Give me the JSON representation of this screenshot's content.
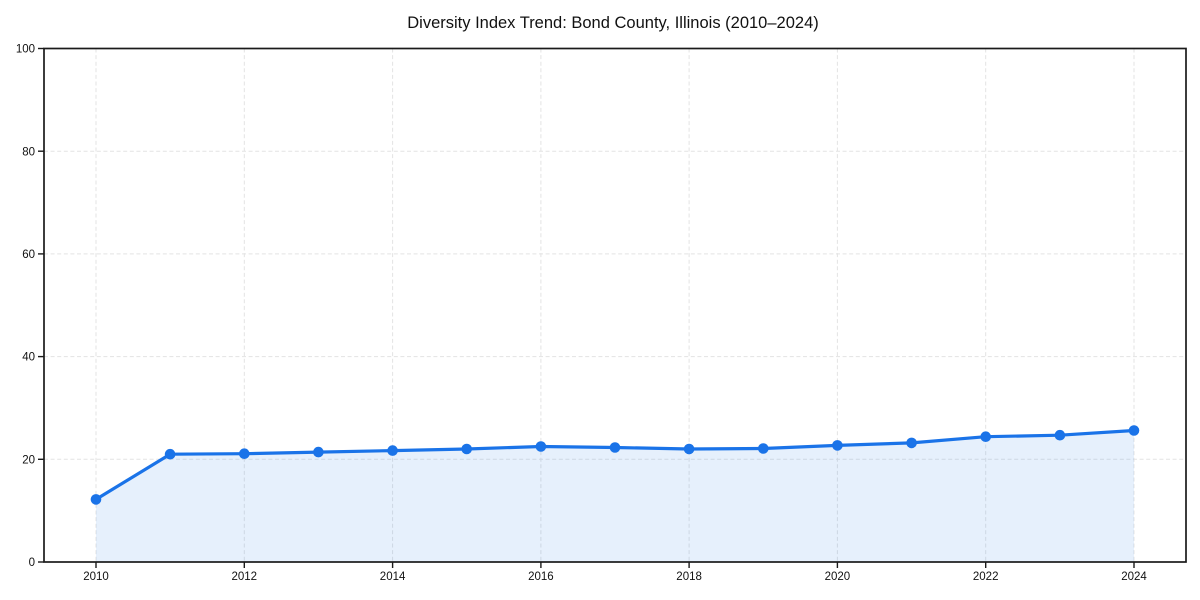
{
  "chart_data": {
    "type": "line",
    "title": "Diversity Index Trend: Bond County, Illinois (2010–2024)",
    "x": [
      2010,
      2011,
      2012,
      2013,
      2014,
      2015,
      2016,
      2017,
      2018,
      2019,
      2020,
      2021,
      2022,
      2023,
      2024
    ],
    "series": [
      {
        "name": "Diversity Index",
        "values": [
          12.2,
          21.0,
          21.1,
          21.4,
          21.7,
          22.0,
          22.5,
          22.3,
          22.0,
          22.1,
          22.7,
          23.2,
          24.4,
          24.7,
          25.6
        ]
      }
    ],
    "xlabel": "",
    "ylabel": "",
    "ylim": [
      0,
      100
    ],
    "xticks": [
      2010,
      2012,
      2014,
      2016,
      2018,
      2020,
      2022,
      2024
    ],
    "yticks": [
      0,
      20,
      40,
      60,
      80,
      100
    ],
    "grid": true,
    "grid_style": "dashed",
    "legend": false,
    "line_color": "#1a73e8",
    "marker_color": "#1a73e8",
    "marker": "circle",
    "fill_color": "rgba(26,115,232,0.11)",
    "gridline_color": "#e3e3e3",
    "axis_color": "#1a1a1a"
  }
}
